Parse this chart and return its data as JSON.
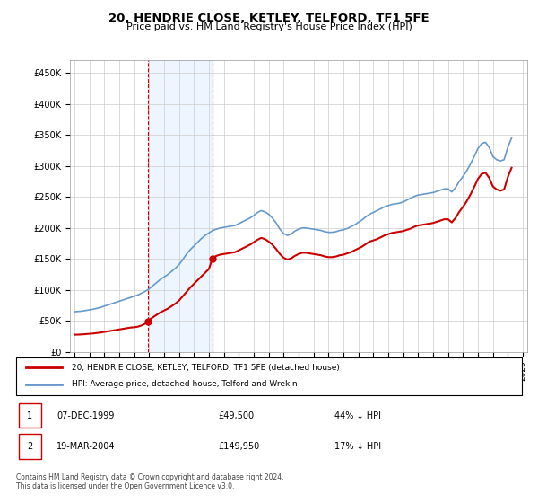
{
  "title": "20, HENDRIE CLOSE, KETLEY, TELFORD, TF1 5FE",
  "subtitle": "Price paid vs. HM Land Registry's House Price Index (HPI)",
  "background_color": "#ffffff",
  "grid_color": "#cccccc",
  "ylim": [
    0,
    470000
  ],
  "yticks": [
    0,
    50000,
    100000,
    150000,
    200000,
    250000,
    300000,
    350000,
    400000,
    450000
  ],
  "ytick_labels": [
    "£0",
    "£50K",
    "£100K",
    "£150K",
    "£200K",
    "£250K",
    "£300K",
    "£350K",
    "£400K",
    "£450K"
  ],
  "sale1": {
    "date": 1999.92,
    "price": 49500,
    "label": "1"
  },
  "sale2": {
    "date": 2004.22,
    "price": 149950,
    "label": "2"
  },
  "sale1_marker_date": 1999.92,
  "sale2_marker_date": 2004.22,
  "shade_start": 1999.92,
  "shade_end": 2004.22,
  "hpi_color": "#6699cc",
  "price_color": "#cc0000",
  "shade_color": "#ddeeff",
  "shade_alpha": 0.5,
  "legend_label_price": "20, HENDRIE CLOSE, KETLEY, TELFORD, TF1 5FE (detached house)",
  "legend_label_hpi": "HPI: Average price, detached house, Telford and Wrekin",
  "table_row1": [
    "1",
    "07-DEC-1999",
    "£49,500",
    "44% ↓ HPI"
  ],
  "table_row2": [
    "2",
    "19-MAR-2004",
    "£149,950",
    "17% ↓ HPI"
  ],
  "footer": "Contains HM Land Registry data © Crown copyright and database right 2024.\nThis data is licensed under the Open Government Licence v3.0.",
  "hpi_data": {
    "years": [
      1995.0,
      1995.25,
      1995.5,
      1995.75,
      1996.0,
      1996.25,
      1996.5,
      1996.75,
      1997.0,
      1997.25,
      1997.5,
      1997.75,
      1998.0,
      1998.25,
      1998.5,
      1998.75,
      1999.0,
      1999.25,
      1999.5,
      1999.75,
      2000.0,
      2000.25,
      2000.5,
      2000.75,
      2001.0,
      2001.25,
      2001.5,
      2001.75,
      2002.0,
      2002.25,
      2002.5,
      2002.75,
      2003.0,
      2003.25,
      2003.5,
      2003.75,
      2004.0,
      2004.25,
      2004.5,
      2004.75,
      2005.0,
      2005.25,
      2005.5,
      2005.75,
      2006.0,
      2006.25,
      2006.5,
      2006.75,
      2007.0,
      2007.25,
      2007.5,
      2007.75,
      2008.0,
      2008.25,
      2008.5,
      2008.75,
      2009.0,
      2009.25,
      2009.5,
      2009.75,
      2010.0,
      2010.25,
      2010.5,
      2010.75,
      2011.0,
      2011.25,
      2011.5,
      2011.75,
      2012.0,
      2012.25,
      2012.5,
      2012.75,
      2013.0,
      2013.25,
      2013.5,
      2013.75,
      2014.0,
      2014.25,
      2014.5,
      2014.75,
      2015.0,
      2015.25,
      2015.5,
      2015.75,
      2016.0,
      2016.25,
      2016.5,
      2016.75,
      2017.0,
      2017.25,
      2017.5,
      2017.75,
      2018.0,
      2018.25,
      2018.5,
      2018.75,
      2019.0,
      2019.25,
      2019.5,
      2019.75,
      2020.0,
      2020.25,
      2020.5,
      2020.75,
      2021.0,
      2021.25,
      2021.5,
      2021.75,
      2022.0,
      2022.25,
      2022.5,
      2022.75,
      2023.0,
      2023.25,
      2023.5,
      2023.75,
      2024.0,
      2024.25
    ],
    "values": [
      65000,
      65500,
      66000,
      67000,
      68000,
      69000,
      70500,
      72000,
      74000,
      76000,
      78000,
      80000,
      82000,
      84000,
      86000,
      88000,
      90000,
      92000,
      95000,
      98000,
      102000,
      107000,
      112000,
      117000,
      121000,
      125000,
      130000,
      135000,
      141000,
      149000,
      158000,
      165000,
      171000,
      177000,
      183000,
      188000,
      192000,
      196000,
      198000,
      200000,
      201000,
      202000,
      203000,
      204000,
      207000,
      210000,
      213000,
      216000,
      220000,
      225000,
      228000,
      226000,
      222000,
      216000,
      208000,
      198000,
      191000,
      188000,
      190000,
      195000,
      198000,
      200000,
      200000,
      199000,
      198000,
      197000,
      196000,
      194000,
      193000,
      193000,
      194000,
      196000,
      197000,
      199000,
      202000,
      205000,
      209000,
      213000,
      218000,
      222000,
      225000,
      228000,
      231000,
      234000,
      236000,
      238000,
      239000,
      240000,
      242000,
      245000,
      248000,
      251000,
      253000,
      254000,
      255000,
      256000,
      257000,
      259000,
      261000,
      263000,
      263000,
      258000,
      265000,
      275000,
      283000,
      292000,
      303000,
      315000,
      328000,
      336000,
      338000,
      330000,
      315000,
      310000,
      308000,
      310000,
      330000,
      345000
    ]
  },
  "price_data": {
    "years": [
      1995.0,
      1995.25,
      1995.5,
      1995.75,
      1996.0,
      1996.25,
      1996.5,
      1996.75,
      1997.0,
      1997.25,
      1997.5,
      1997.75,
      1998.0,
      1998.25,
      1998.5,
      1998.75,
      1999.0,
      1999.25,
      1999.5,
      1999.75,
      1999.92,
      2000.0,
      2000.25,
      2000.5,
      2000.75,
      2001.0,
      2001.25,
      2001.5,
      2001.75,
      2002.0,
      2002.25,
      2002.5,
      2002.75,
      2003.0,
      2003.25,
      2003.5,
      2003.75,
      2004.0,
      2004.22,
      2004.25,
      2004.5,
      2004.75,
      2005.0,
      2005.25,
      2005.5,
      2005.75,
      2006.0,
      2006.25,
      2006.5,
      2006.75,
      2007.0,
      2007.25,
      2007.5,
      2007.75,
      2008.0,
      2008.25,
      2008.5,
      2008.75,
      2009.0,
      2009.25,
      2009.5,
      2009.75,
      2010.0,
      2010.25,
      2010.5,
      2010.75,
      2011.0,
      2011.25,
      2011.5,
      2011.75,
      2012.0,
      2012.25,
      2012.5,
      2012.75,
      2013.0,
      2013.25,
      2013.5,
      2013.75,
      2014.0,
      2014.25,
      2014.5,
      2014.75,
      2015.0,
      2015.25,
      2015.5,
      2015.75,
      2016.0,
      2016.25,
      2016.5,
      2016.75,
      2017.0,
      2017.25,
      2017.5,
      2017.75,
      2018.0,
      2018.25,
      2018.5,
      2018.75,
      2019.0,
      2019.25,
      2019.5,
      2019.75,
      2020.0,
      2020.25,
      2020.5,
      2020.75,
      2021.0,
      2021.25,
      2021.5,
      2021.75,
      2022.0,
      2022.25,
      2022.5,
      2022.75,
      2023.0,
      2023.25,
      2023.5,
      2023.75,
      2024.0,
      2024.25
    ],
    "values": [
      28000,
      28200,
      28500,
      29000,
      29500,
      30000,
      30800,
      31500,
      32500,
      33500,
      34500,
      35500,
      36500,
      37500,
      38500,
      39500,
      40000,
      41000,
      43000,
      46000,
      49500,
      52000,
      56000,
      60000,
      64000,
      67000,
      70000,
      74000,
      78000,
      83000,
      90000,
      97000,
      104000,
      110000,
      116000,
      122000,
      128000,
      134000,
      149950,
      152000,
      155000,
      157000,
      158000,
      159000,
      160000,
      161000,
      164000,
      167000,
      170000,
      173000,
      177000,
      181000,
      184000,
      182000,
      178000,
      173000,
      166000,
      158000,
      152000,
      149000,
      151000,
      155000,
      158000,
      160000,
      160000,
      159000,
      158000,
      157000,
      156000,
      154000,
      153000,
      153000,
      154000,
      156000,
      157000,
      159000,
      161000,
      164000,
      167000,
      170000,
      174000,
      178000,
      180000,
      182000,
      185000,
      188000,
      190000,
      192000,
      193000,
      194000,
      195000,
      197000,
      199000,
      202000,
      204000,
      205000,
      206000,
      207000,
      208000,
      210000,
      212000,
      214000,
      214000,
      209000,
      216000,
      226000,
      234000,
      243000,
      254000,
      266000,
      279000,
      287000,
      289000,
      281000,
      267000,
      262000,
      260000,
      262000,
      282000,
      297000
    ]
  },
  "xtick_years": [
    1995,
    1996,
    1997,
    1998,
    1999,
    2000,
    2001,
    2002,
    2003,
    2004,
    2005,
    2006,
    2007,
    2008,
    2009,
    2010,
    2011,
    2012,
    2013,
    2014,
    2015,
    2016,
    2017,
    2018,
    2019,
    2020,
    2021,
    2022,
    2023,
    2024,
    2025
  ]
}
